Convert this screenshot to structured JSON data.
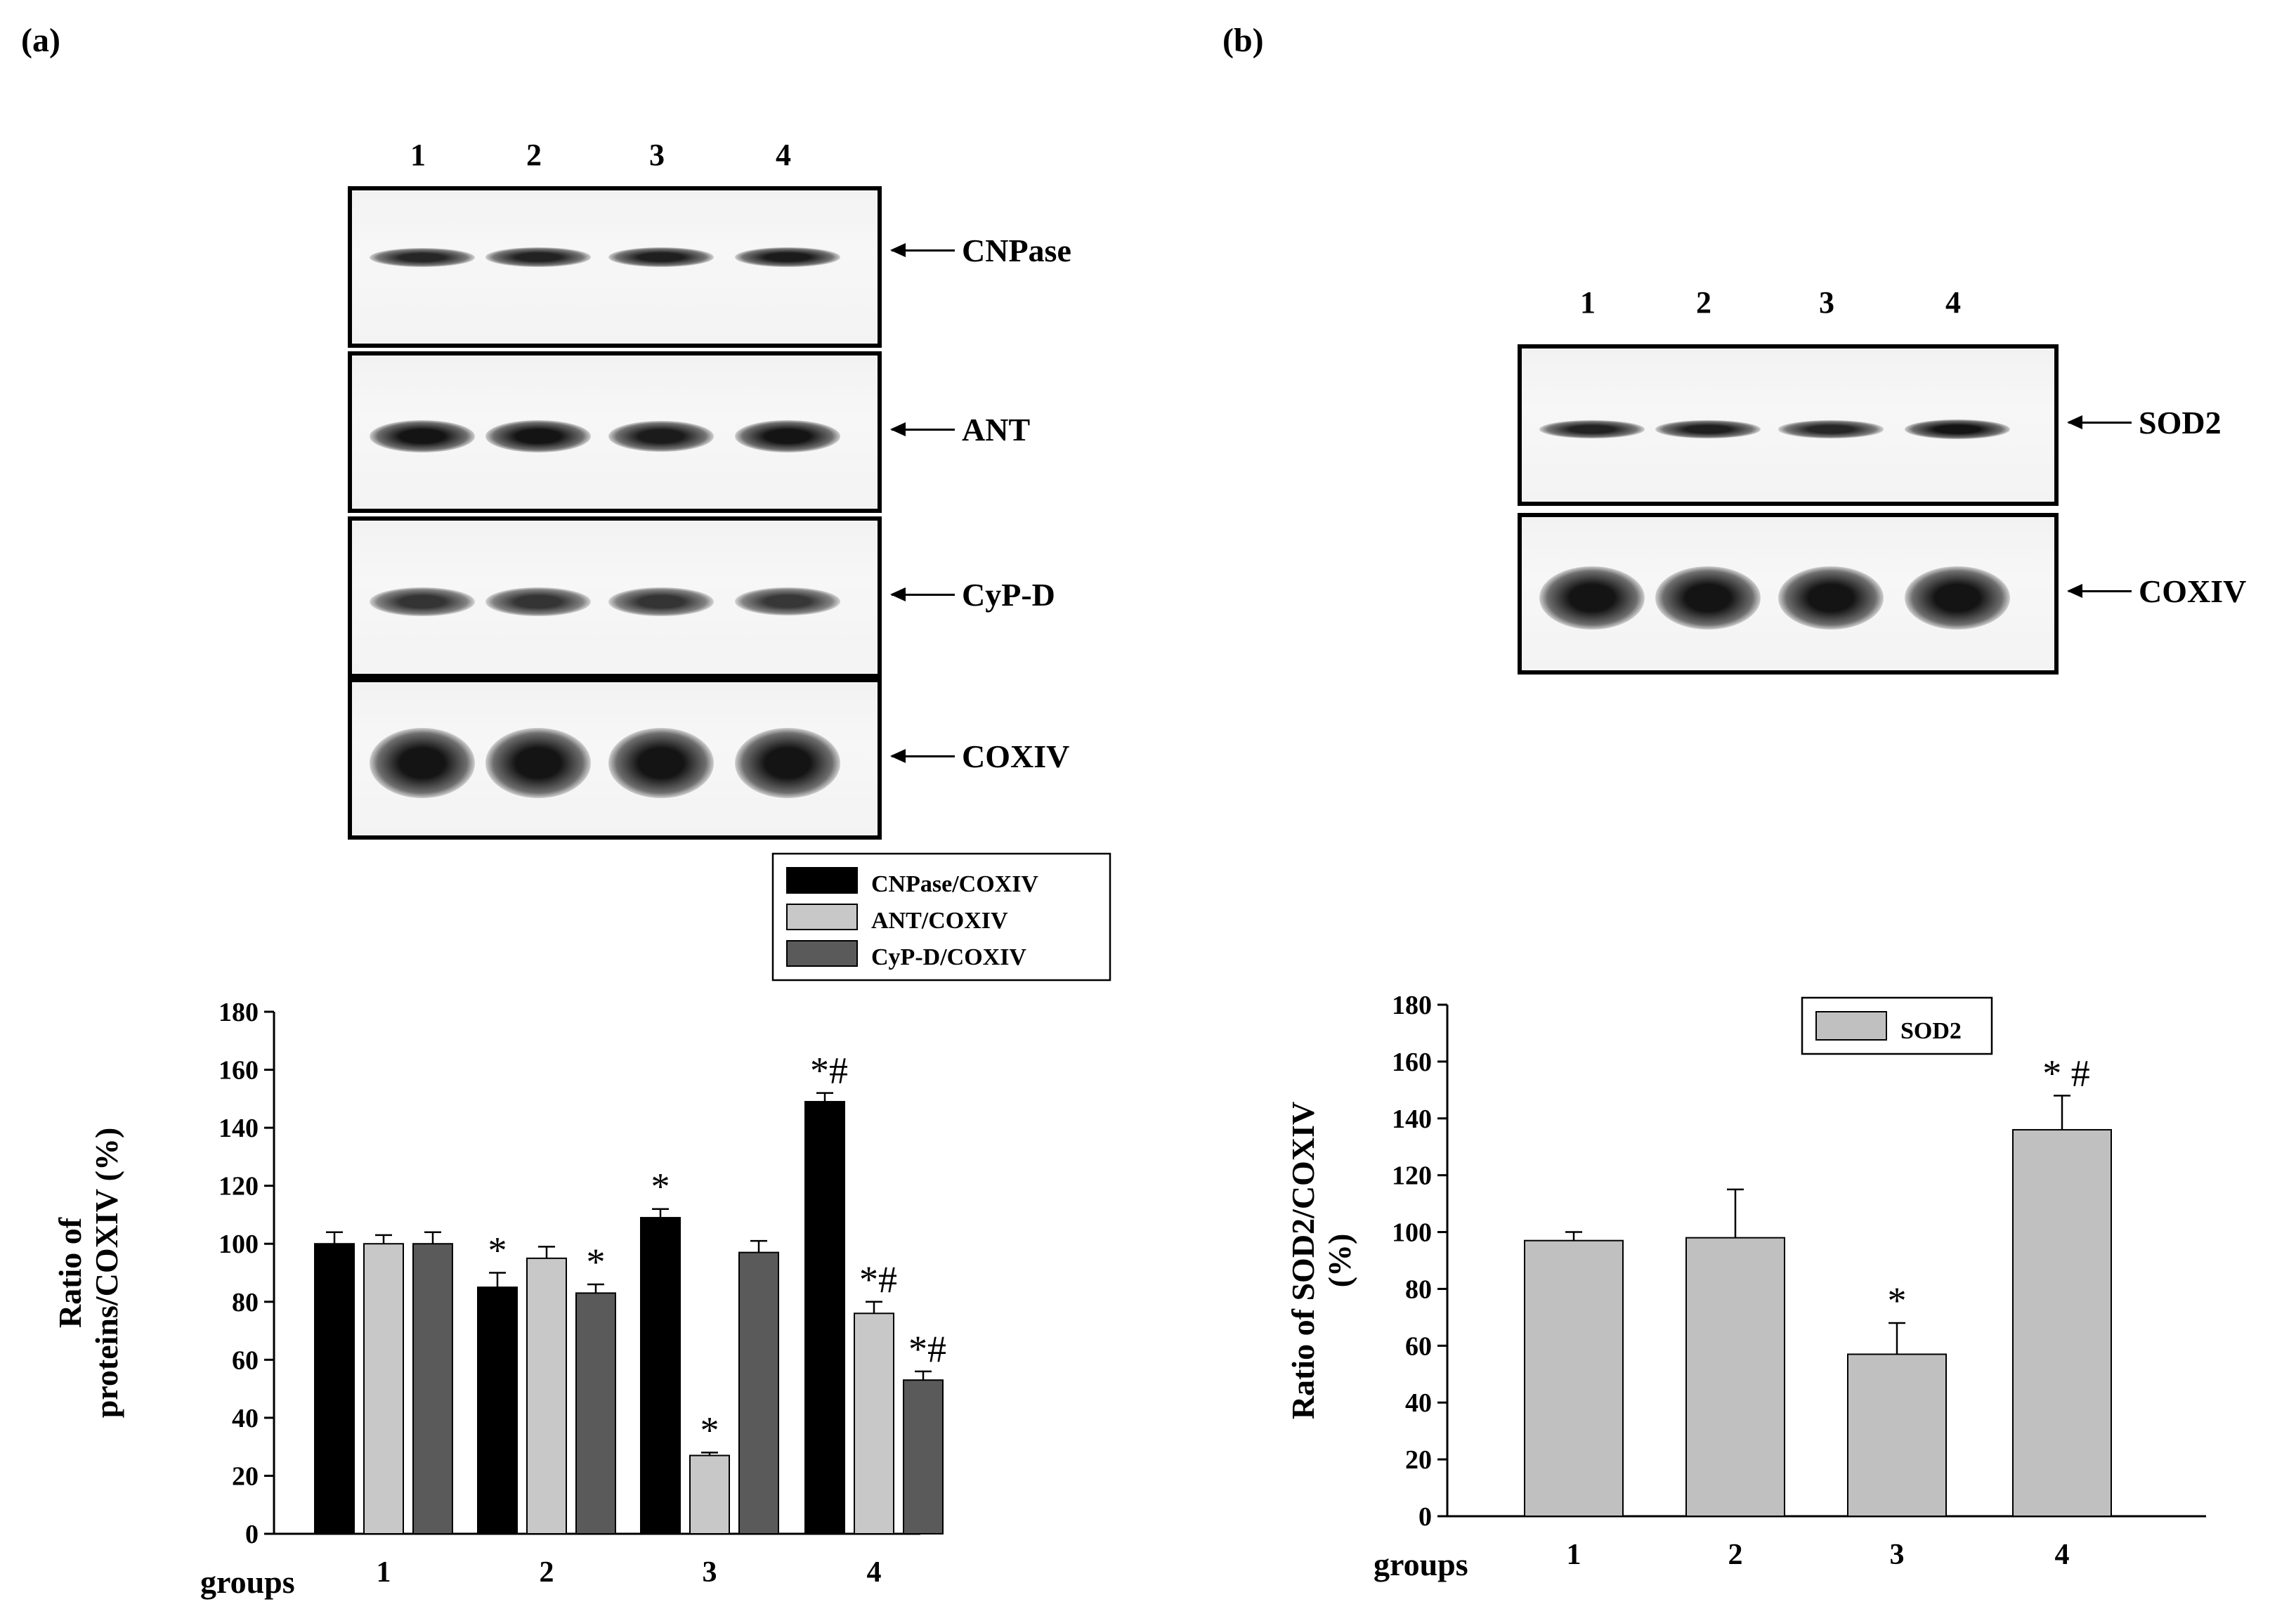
{
  "panels": {
    "a_label": "(a)",
    "b_label": "(b)"
  },
  "blot_a": {
    "lanes": [
      "1",
      "2",
      "3",
      "4"
    ],
    "rows": [
      {
        "label": "CNPase",
        "intensity": [
          0.75,
          0.8,
          0.85,
          0.9
        ]
      },
      {
        "label": "ANT",
        "intensity": [
          1.0,
          1.0,
          0.9,
          1.0
        ]
      },
      {
        "label": "CyP-D",
        "intensity": [
          0.55,
          0.55,
          0.55,
          0.5
        ]
      },
      {
        "label": "COXIV",
        "intensity": [
          1.0,
          1.0,
          1.0,
          1.0
        ]
      }
    ]
  },
  "blot_b": {
    "lanes": [
      "1",
      "2",
      "3",
      "4"
    ],
    "rows": [
      {
        "label": "SOD2",
        "intensity": [
          0.8,
          0.85,
          0.75,
          1.0
        ]
      },
      {
        "label": "COXIV",
        "intensity": [
          1.0,
          1.0,
          1.0,
          1.0
        ]
      }
    ]
  },
  "chart_data": [
    {
      "type": "bar",
      "categories": [
        "1",
        "2",
        "3",
        "4"
      ],
      "xlabel": "groups",
      "ylabel": [
        "Ratio of",
        "proteins/COXIV (%)"
      ],
      "ylim": [
        0,
        180
      ],
      "yticks": [
        0,
        20,
        40,
        60,
        80,
        100,
        120,
        140,
        160,
        180
      ],
      "legend_position": "top-right",
      "series": [
        {
          "name": "CNPase/COXIV",
          "color": "#000000",
          "values": [
            100,
            85,
            109,
            149
          ],
          "errors": [
            4,
            5,
            3,
            3
          ],
          "annotations": [
            "",
            "*",
            "*",
            "*#"
          ]
        },
        {
          "name": "ANT/COXIV",
          "color": "#c8c8c8",
          "values": [
            100,
            95,
            27,
            76
          ],
          "errors": [
            3,
            4,
            1,
            4
          ],
          "annotations": [
            "",
            "",
            "*",
            "*#"
          ]
        },
        {
          "name": "CyP-D/COXIV",
          "color": "#5a5a5a",
          "values": [
            100,
            83,
            97,
            53
          ],
          "errors": [
            4,
            3,
            4,
            3
          ],
          "annotations": [
            "",
            "*",
            "",
            "*#"
          ]
        }
      ]
    },
    {
      "type": "bar",
      "categories": [
        "1",
        "2",
        "3",
        "4"
      ],
      "xlabel": "groups",
      "ylabel": [
        "Ratio of SOD2/COXIV",
        "(%)"
      ],
      "ylim": [
        0,
        180
      ],
      "yticks": [
        0,
        20,
        40,
        60,
        80,
        100,
        120,
        140,
        160,
        180
      ],
      "legend_position": "top-right",
      "series": [
        {
          "name": "SOD2",
          "color": "#c0c0c0",
          "values": [
            97,
            98,
            57,
            136
          ],
          "errors": [
            3,
            17,
            11,
            12
          ],
          "annotations": [
            "",
            "",
            "*",
            "* #"
          ]
        }
      ]
    }
  ]
}
